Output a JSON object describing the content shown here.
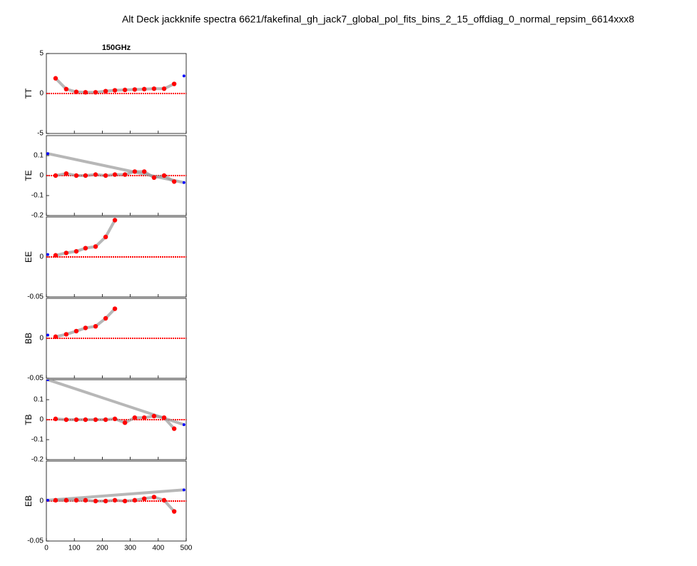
{
  "title": "Alt Deck jackknife spectra 6621/fakefinal_gh_jack7_global_pol_fits_bins_2_15_offdiag_0_normal_repsim_6614xxx8",
  "chart_data": [
    {
      "type": "scatter",
      "title": "150GHz",
      "ylabel": "TT",
      "xlim": [
        0,
        500
      ],
      "xticks": [
        0,
        100,
        200,
        300,
        400,
        500
      ],
      "ylim": [
        -5,
        5
      ],
      "yticks": [
        -5,
        0,
        5
      ],
      "series": [
        {
          "color": "#ff0000",
          "x": [
            33,
            71,
            107,
            140,
            176,
            212,
            245,
            281,
            316,
            350,
            385,
            421,
            457
          ],
          "values": [
            1.9,
            0.55,
            0.2,
            0.15,
            0.15,
            0.3,
            0.4,
            0.45,
            0.5,
            0.55,
            0.6,
            0.6,
            1.2
          ]
        },
        {
          "color": "#0000ff",
          "x": [
            492
          ],
          "values": [
            2.2
          ]
        }
      ]
    },
    {
      "type": "scatter",
      "ylabel": "TE",
      "xlim": [
        0,
        500
      ],
      "xticks": [
        0,
        100,
        200,
        300,
        400,
        500
      ],
      "ylim": [
        -0.2,
        0.2
      ],
      "yticks": [
        -0.2,
        -0.1,
        0,
        0.1
      ],
      "series": [
        {
          "color": "#ff0000",
          "x": [
            33,
            71,
            107,
            140,
            176,
            212,
            245,
            281,
            316,
            350,
            385,
            421,
            457
          ],
          "values": [
            0,
            0.01,
            0,
            0,
            0.005,
            0,
            0.005,
            0.005,
            0.02,
            0.02,
            -0.01,
            0,
            -0.03
          ]
        },
        {
          "color": "#0000ff",
          "x": [
            5,
            492
          ],
          "values": [
            0.11,
            -0.035
          ]
        }
      ]
    },
    {
      "type": "scatter",
      "ylabel": "EE",
      "xlim": [
        0,
        500
      ],
      "xticks": [
        0,
        100,
        200,
        300,
        400,
        500
      ],
      "ylim": [
        -0.05,
        0.05
      ],
      "yticks": [
        -0.05,
        0
      ],
      "series": [
        {
          "color": "#ff0000",
          "x": [
            33,
            71,
            107,
            140,
            176,
            212,
            245
          ],
          "values": [
            0.002,
            0.005,
            0.007,
            0.011,
            0.013,
            0.025,
            0.046
          ]
        },
        {
          "color": "#0000ff",
          "x": [
            5
          ],
          "values": [
            0.003
          ]
        }
      ]
    },
    {
      "type": "scatter",
      "ylabel": "BB",
      "xlim": [
        0,
        500
      ],
      "xticks": [
        0,
        100,
        200,
        300,
        400,
        500
      ],
      "ylim": [
        -0.05,
        0.05
      ],
      "yticks": [
        -0.05,
        0
      ],
      "series": [
        {
          "color": "#ff0000",
          "x": [
            33,
            71,
            107,
            140,
            176,
            212,
            245
          ],
          "values": [
            0.002,
            0.005,
            0.009,
            0.013,
            0.015,
            0.025,
            0.037
          ]
        },
        {
          "color": "#0000ff",
          "x": [
            5
          ],
          "values": [
            0.004
          ]
        }
      ]
    },
    {
      "type": "scatter",
      "ylabel": "TB",
      "xlim": [
        0,
        500
      ],
      "xticks": [
        0,
        100,
        200,
        300,
        400,
        500
      ],
      "ylim": [
        -0.2,
        0.2
      ],
      "yticks": [
        -0.2,
        -0.1,
        0,
        0.1
      ],
      "series": [
        {
          "color": "#ff0000",
          "x": [
            33,
            71,
            107,
            140,
            176,
            212,
            245,
            281,
            316,
            350,
            385,
            421,
            457
          ],
          "values": [
            0.004,
            0,
            0,
            0,
            0,
            0,
            0.004,
            -0.015,
            0.01,
            0.01,
            0.018,
            0.01,
            -0.045
          ]
        },
        {
          "color": "#0000ff",
          "x": [
            5,
            492
          ],
          "values": [
            0.2,
            -0.025
          ]
        }
      ]
    },
    {
      "type": "scatter",
      "ylabel": "EB",
      "xlim": [
        0,
        500
      ],
      "xticks": [
        0,
        100,
        200,
        300,
        400,
        500
      ],
      "ylim": [
        -0.05,
        0.05
      ],
      "yticks": [
        -0.05,
        0
      ],
      "series": [
        {
          "color": "#ff0000",
          "x": [
            33,
            71,
            107,
            140,
            176,
            212,
            245,
            281,
            316,
            350,
            385,
            421,
            457
          ],
          "values": [
            0.001,
            0.001,
            0.001,
            0.001,
            0,
            0,
            0.001,
            0,
            0.001,
            0.003,
            0.005,
            0.001,
            -0.013
          ]
        },
        {
          "color": "#0000ff",
          "x": [
            5,
            492
          ],
          "values": [
            0.001,
            0.014
          ]
        }
      ]
    }
  ]
}
